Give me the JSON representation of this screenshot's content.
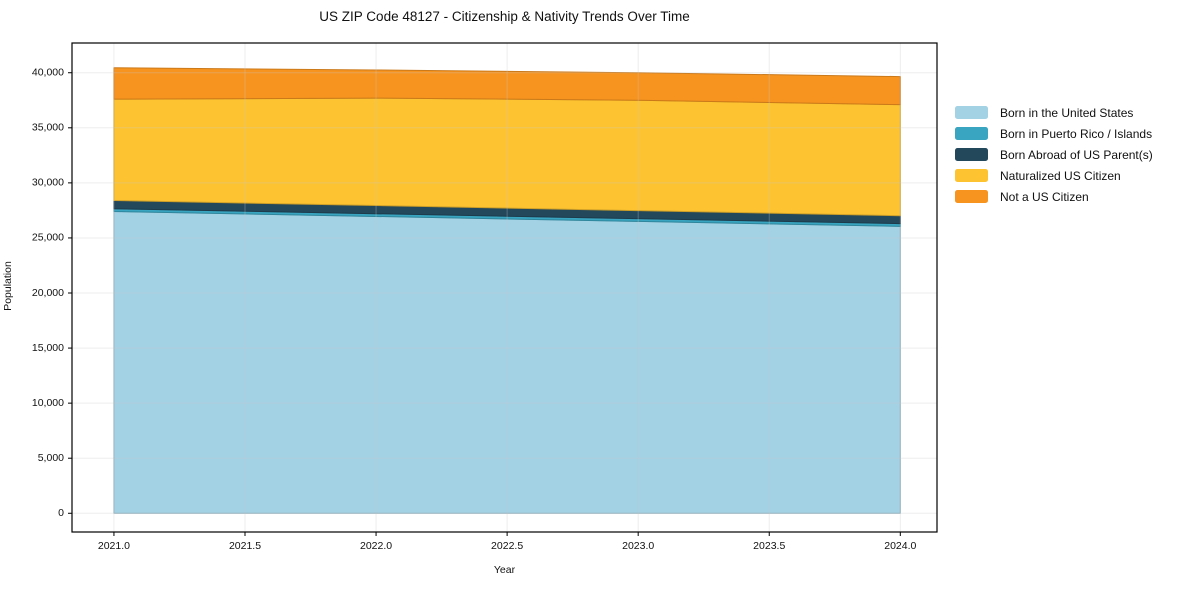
{
  "chart_data": {
    "type": "area",
    "stacked": true,
    "title": "US ZIP Code 48127 - Citizenship & Nativity Trends Over Time",
    "xlabel": "Year",
    "ylabel": "Population",
    "x": [
      2021,
      2022,
      2023,
      2024
    ],
    "xlim": [
      2020.84,
      2024.14
    ],
    "ylim": [
      -1700,
      42700
    ],
    "grid": true,
    "legend_position": "right-outside",
    "x_ticks": [
      2021.0,
      2021.5,
      2022.0,
      2022.5,
      2023.0,
      2023.5,
      2024.0
    ],
    "x_tick_labels": [
      "2021.0",
      "2021.5",
      "2022.0",
      "2022.5",
      "2023.0",
      "2023.5",
      "2024.0"
    ],
    "y_ticks": [
      0,
      5000,
      10000,
      15000,
      20000,
      25000,
      30000,
      35000,
      40000
    ],
    "y_tick_labels": [
      "0",
      "5,000",
      "10,000",
      "15,000",
      "20,000",
      "25,000",
      "30,000",
      "35,000",
      "40,000"
    ],
    "series": [
      {
        "name": "Born in the United States",
        "color": "#A3D2E5",
        "values": [
          27400,
          26950,
          26500,
          26050
        ]
      },
      {
        "name": "Born in Puerto Rico / Islands",
        "color": "#39A5C0",
        "values": [
          250,
          250,
          250,
          250
        ]
      },
      {
        "name": "Born Abroad of US Parent(s)",
        "color": "#23485C",
        "values": [
          750,
          740,
          730,
          720
        ]
      },
      {
        "name": "Naturalized US Citizen",
        "color": "#FDC331",
        "values": [
          9200,
          9760,
          10020,
          10080
        ]
      },
      {
        "name": "Not a US Citizen",
        "color": "#F7941F",
        "values": [
          2850,
          2550,
          2500,
          2550
        ]
      }
    ],
    "totals": [
      40450,
      40250,
      40000,
      39650
    ]
  }
}
